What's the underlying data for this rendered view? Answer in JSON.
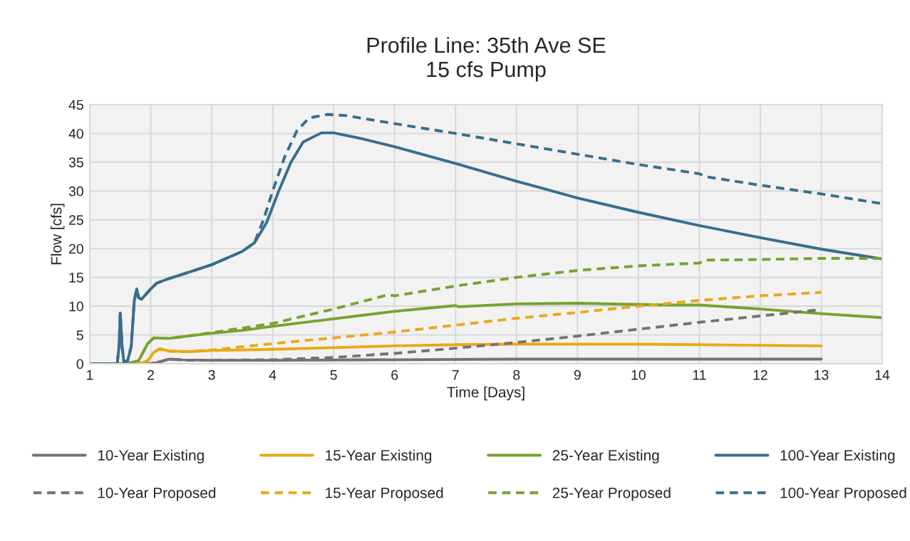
{
  "chart_data": {
    "type": "line",
    "title": "Profile Line: 35th Ave SE\n15 cfs Pump",
    "xlabel": "Time [Days]",
    "ylabel": "Flow [cfs]",
    "xlim": [
      1,
      14
    ],
    "xticks": [
      1,
      2,
      3,
      4,
      5,
      6,
      7,
      8,
      9,
      10,
      11,
      12,
      13,
      14
    ],
    "ylim": [
      0,
      45
    ],
    "yticks": [
      0,
      5,
      10,
      15,
      20,
      25,
      30,
      35,
      40,
      45
    ],
    "grid": true,
    "legend": "bottom",
    "marker": "none",
    "series": [
      {
        "name": "10-Year Existing",
        "color": "#767171",
        "line_style": "solid",
        "x": [
          1,
          2,
          2.1,
          2.3,
          2.5,
          3,
          4,
          6,
          8,
          10,
          13
        ],
        "values": [
          0,
          0,
          0.2,
          0.8,
          0.7,
          0.6,
          0.6,
          0.7,
          0.8,
          0.8,
          0.8
        ]
      },
      {
        "name": "15-Year Existing",
        "color": "#e8a915",
        "line_style": "solid",
        "x": [
          1,
          1.8,
          1.95,
          2.05,
          2.15,
          2.3,
          2.6,
          3,
          4,
          5,
          6,
          7,
          8,
          9,
          10,
          11,
          12,
          13
        ],
        "values": [
          0,
          0,
          0.5,
          2,
          2.6,
          2.2,
          2.1,
          2.3,
          2.5,
          2.8,
          3.1,
          3.3,
          3.4,
          3.4,
          3.4,
          3.3,
          3.2,
          3.1
        ]
      },
      {
        "name": "25-Year Existing",
        "color": "#77a22d",
        "line_style": "solid",
        "x": [
          1,
          1.6,
          1.8,
          1.95,
          2.05,
          2.3,
          2.6,
          3,
          3.5,
          4,
          5,
          6,
          7,
          7.05,
          8,
          9,
          10,
          10.5,
          11,
          12,
          13,
          14
        ],
        "values": [
          0,
          0,
          0.5,
          3.5,
          4.5,
          4.4,
          4.8,
          5.3,
          5.8,
          6.5,
          7.8,
          9.1,
          10.1,
          9.9,
          10.4,
          10.5,
          10.3,
          10.2,
          10.2,
          9.5,
          8.7,
          8.0
        ]
      },
      {
        "name": "100-Year Existing",
        "color": "#376e8f",
        "line_style": "solid",
        "x": [
          1,
          1.45,
          1.48,
          1.5,
          1.53,
          1.56,
          1.62,
          1.68,
          1.73,
          1.77,
          1.8,
          1.85,
          1.9,
          2,
          2.1,
          2.3,
          2.6,
          3,
          3.5,
          3.7,
          3.9,
          4.1,
          4.3,
          4.5,
          4.8,
          5,
          5.5,
          6,
          7,
          8,
          9,
          10,
          11,
          12,
          13,
          14
        ],
        "values": [
          0,
          0,
          3,
          8.8,
          3,
          0.3,
          0.5,
          3,
          11,
          13,
          11.5,
          11.2,
          11.8,
          13,
          14,
          14.8,
          15.8,
          17.2,
          19.5,
          21,
          24.5,
          30,
          35,
          38.5,
          40.1,
          40.1,
          39,
          37.7,
          34.8,
          31.7,
          28.8,
          26.3,
          24,
          21.9,
          19.9,
          18.2
        ]
      },
      {
        "name": "10-Year Proposed",
        "color": "#767171",
        "line_style": "dashed",
        "x": [
          1,
          2,
          2.1,
          2.3,
          2.6,
          3,
          4,
          5,
          6,
          7,
          8,
          9,
          10,
          11,
          12,
          13
        ],
        "values": [
          0,
          0,
          0.2,
          0.8,
          0.6,
          0.6,
          0.7,
          1.1,
          1.8,
          2.7,
          3.7,
          4.8,
          6,
          7.2,
          8.3,
          9.4
        ]
      },
      {
        "name": "15-Year Proposed",
        "color": "#e8a915",
        "line_style": "dashed",
        "x": [
          1,
          1.8,
          1.95,
          2.05,
          2.15,
          2.3,
          2.6,
          3,
          4,
          5,
          6,
          7,
          8,
          9,
          10,
          11,
          12,
          13
        ],
        "values": [
          0,
          0,
          0.5,
          2,
          2.6,
          2.2,
          2.1,
          2.4,
          3.5,
          4.5,
          5.5,
          6.7,
          7.9,
          8.9,
          10,
          11,
          11.8,
          12.4
        ]
      },
      {
        "name": "25-Year Proposed",
        "color": "#77a22d",
        "line_style": "dashed",
        "x": [
          1,
          1.6,
          1.8,
          1.95,
          2.05,
          2.3,
          2.6,
          3,
          4,
          5,
          5.9,
          6,
          7,
          8,
          9,
          10,
          11,
          11.1,
          12,
          13,
          14
        ],
        "values": [
          0,
          0,
          0.5,
          3.5,
          4.5,
          4.4,
          4.8,
          5.4,
          7,
          9.5,
          12,
          11.8,
          13.5,
          15,
          16.2,
          17,
          17.5,
          18,
          18.1,
          18.3,
          18.3
        ]
      },
      {
        "name": "100-Year Proposed",
        "color": "#376e8f",
        "line_style": "dashed",
        "x": [
          1,
          1.45,
          1.48,
          1.5,
          1.53,
          1.56,
          1.62,
          1.68,
          1.73,
          1.77,
          1.8,
          1.85,
          1.9,
          2,
          2.1,
          2.3,
          2.6,
          3,
          3.5,
          3.7,
          3.85,
          4,
          4.2,
          4.4,
          4.6,
          4.9,
          5.2,
          6,
          7,
          8,
          9,
          10,
          11,
          11.1,
          12,
          13,
          14
        ],
        "values": [
          0,
          0,
          3,
          8.8,
          3,
          0.3,
          0.5,
          3,
          11,
          13,
          11.5,
          11.2,
          11.8,
          13,
          14,
          14.8,
          15.8,
          17.2,
          19.5,
          21,
          25,
          30,
          36,
          40.5,
          42.7,
          43.3,
          43.1,
          41.7,
          40,
          38.2,
          36.4,
          34.6,
          33,
          32.5,
          31,
          29.5,
          27.8
        ]
      }
    ]
  }
}
